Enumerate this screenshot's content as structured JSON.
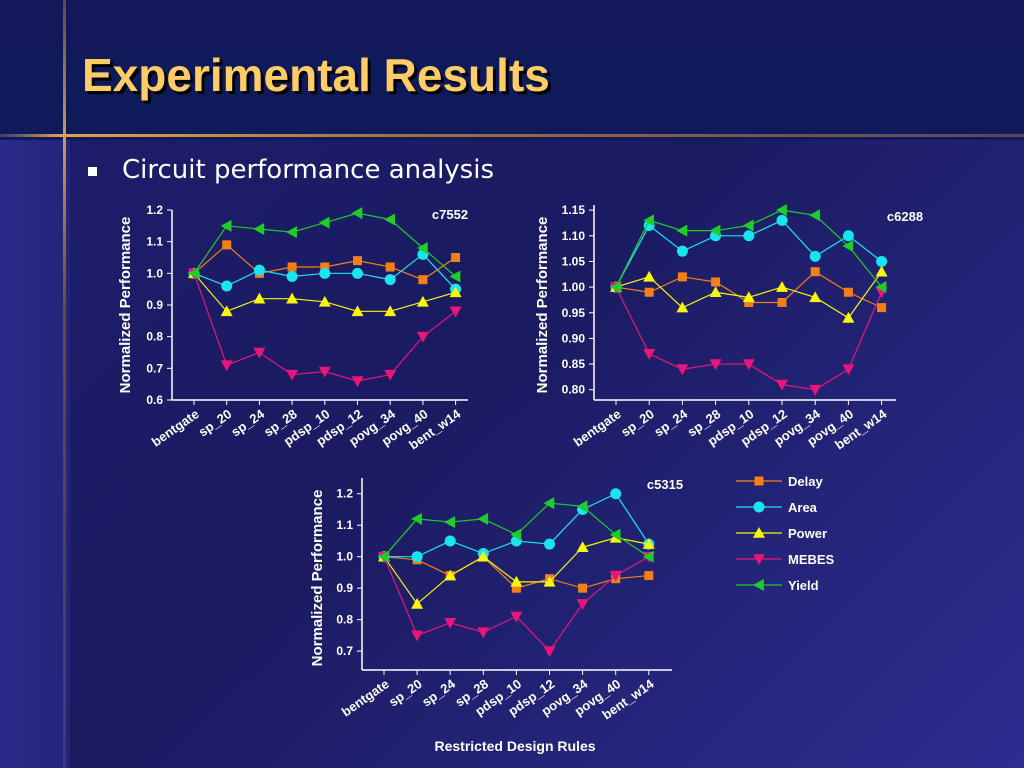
{
  "title": "Experimental Results",
  "bullet": "Circuit performance analysis",
  "x_axis_title": "Restricted Design Rules",
  "colors": {
    "Delay": "#f57f17",
    "Area": "#19e5f0",
    "Power": "#f7f707",
    "MEBES": "#e8167a",
    "Yield": "#1fcc28",
    "title": "#ffcc66"
  },
  "legend": [
    {
      "name": "Delay",
      "marker": "square"
    },
    {
      "name": "Area",
      "marker": "circle"
    },
    {
      "name": "Power",
      "marker": "triangle-up"
    },
    {
      "name": "MEBES",
      "marker": "triangle-down"
    },
    {
      "name": "Yield",
      "marker": "triangle-left"
    }
  ],
  "chart_data": [
    {
      "type": "line",
      "title": "c7552",
      "ylabel": "Normalized Performance",
      "categories": [
        "bentgate",
        "sp_20",
        "sp_24",
        "sp_28",
        "pdsp_10",
        "pdsp_12",
        "povg_34",
        "povg_40",
        "bent_w14"
      ],
      "yticks": [
        "0.6",
        "0.7",
        "0.8",
        "0.9",
        "1.0",
        "1.1",
        "1.2"
      ],
      "ylim": [
        0.6,
        1.2
      ],
      "series": [
        {
          "name": "Delay",
          "values": [
            1.0,
            1.09,
            1.0,
            1.02,
            1.02,
            1.04,
            1.02,
            0.98,
            1.05
          ]
        },
        {
          "name": "Area",
          "values": [
            1.0,
            0.96,
            1.01,
            0.99,
            1.0,
            1.0,
            0.98,
            1.06,
            0.95
          ]
        },
        {
          "name": "Power",
          "values": [
            1.0,
            0.88,
            0.92,
            0.92,
            0.91,
            0.88,
            0.88,
            0.91,
            0.94
          ]
        },
        {
          "name": "MEBES",
          "values": [
            1.0,
            0.71,
            0.75,
            0.68,
            0.69,
            0.66,
            0.68,
            0.8,
            0.88
          ]
        },
        {
          "name": "Yield",
          "values": [
            1.0,
            1.15,
            1.14,
            1.13,
            1.16,
            1.19,
            1.17,
            1.08,
            0.99
          ]
        }
      ]
    },
    {
      "type": "line",
      "title": "c6288",
      "ylabel": "Normalized Performance",
      "categories": [
        "bentgate",
        "sp_20",
        "sp_24",
        "sp_28",
        "pdsp_10",
        "pdsp_12",
        "povg_34",
        "povg_40",
        "bent_w14"
      ],
      "yticks": [
        "0.80",
        "0.85",
        "0.90",
        "0.95",
        "1.00",
        "1.05",
        "1.10",
        "1.15"
      ],
      "ylim": [
        0.78,
        1.16
      ],
      "series": [
        {
          "name": "Delay",
          "values": [
            1.0,
            0.99,
            1.02,
            1.01,
            0.97,
            0.97,
            1.03,
            0.99,
            0.96
          ]
        },
        {
          "name": "Area",
          "values": [
            1.0,
            1.12,
            1.07,
            1.1,
            1.1,
            1.13,
            1.06,
            1.1,
            1.05
          ]
        },
        {
          "name": "Power",
          "values": [
            1.0,
            1.02,
            0.96,
            0.99,
            0.98,
            1.0,
            0.98,
            0.94,
            1.03
          ]
        },
        {
          "name": "MEBES",
          "values": [
            1.0,
            0.87,
            0.84,
            0.85,
            0.85,
            0.81,
            0.8,
            0.84,
            0.99
          ]
        },
        {
          "name": "Yield",
          "values": [
            1.0,
            1.13,
            1.11,
            1.11,
            1.12,
            1.15,
            1.14,
            1.08,
            1.0
          ]
        }
      ]
    },
    {
      "type": "line",
      "title": "c5315",
      "ylabel": "Normalized Performance",
      "categories": [
        "bentgate",
        "sp_20",
        "sp_24",
        "sp_28",
        "pdsp_10",
        "pdsp_12",
        "povg_34",
        "povg_40",
        "bent_w14"
      ],
      "yticks": [
        "0.7",
        "0.8",
        "0.9",
        "1.0",
        "1.1",
        "1.2"
      ],
      "ylim": [
        0.64,
        1.25
      ],
      "series": [
        {
          "name": "Delay",
          "values": [
            1.0,
            0.99,
            0.94,
            1.0,
            0.9,
            0.93,
            0.9,
            0.93,
            0.94
          ]
        },
        {
          "name": "Area",
          "values": [
            1.0,
            1.0,
            1.05,
            1.01,
            1.05,
            1.04,
            1.15,
            1.2,
            1.04
          ]
        },
        {
          "name": "Power",
          "values": [
            1.0,
            0.85,
            0.94,
            1.0,
            0.92,
            0.92,
            1.03,
            1.06,
            1.04
          ]
        },
        {
          "name": "MEBES",
          "values": [
            1.0,
            0.75,
            0.79,
            0.76,
            0.81,
            0.7,
            0.85,
            0.94,
            1.0
          ]
        },
        {
          "name": "Yield",
          "values": [
            1.0,
            1.12,
            1.11,
            1.12,
            1.07,
            1.17,
            1.16,
            1.07,
            1.0
          ]
        }
      ]
    }
  ]
}
